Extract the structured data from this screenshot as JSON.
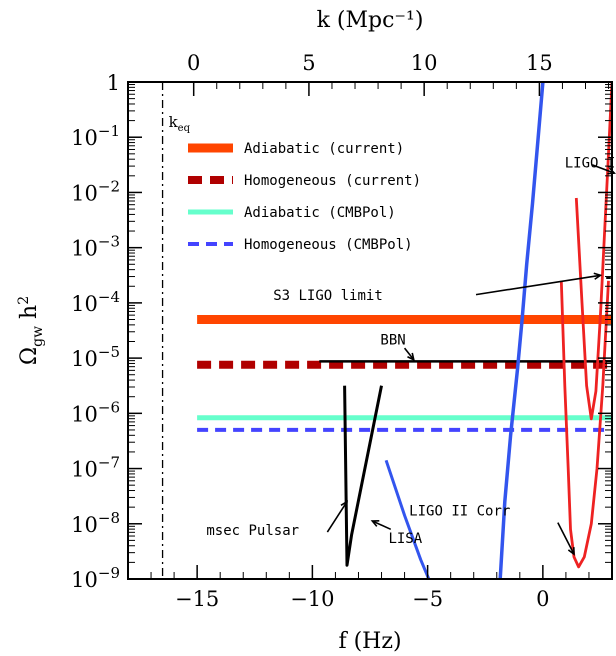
{
  "chart_data": {
    "type": "line",
    "xlabel": "f (Hz)",
    "x2label": "k (Mpc⁻¹)",
    "ylabel": "Ω_gw h²",
    "xlim": [
      -18,
      3
    ],
    "ylim": [
      -9,
      0
    ],
    "x_ticks": [
      -15,
      -10,
      -5,
      0
    ],
    "x_tick_labels": [
      "−15",
      "−10",
      "−5",
      "0"
    ],
    "x2_ticks": [
      0,
      5,
      10,
      15
    ],
    "x2_tick_labels": [
      "0",
      "5",
      "10",
      "15"
    ],
    "x2_offset": -15.15,
    "y_ticks": [
      0,
      -1,
      -2,
      -3,
      -4,
      -5,
      -6,
      -7,
      -8,
      -9
    ],
    "y_tick_labels": [
      {
        "base": "1",
        "exp": ""
      },
      {
        "base": "10",
        "exp": "−1"
      },
      {
        "base": "10",
        "exp": "−2"
      },
      {
        "base": "10",
        "exp": "−3"
      },
      {
        "base": "10",
        "exp": "−4"
      },
      {
        "base": "10",
        "exp": "−5"
      },
      {
        "base": "10",
        "exp": "−6"
      },
      {
        "base": "10",
        "exp": "−7"
      },
      {
        "base": "10",
        "exp": "−8"
      },
      {
        "base": "10",
        "exp": "−9"
      }
    ],
    "k_eq": {
      "x": -16.5,
      "label": "k",
      "label_sub": "eq"
    },
    "legend": [
      {
        "label": "Adiabatic (current)",
        "color": "#ff4500",
        "dash": "solid"
      },
      {
        "label": "Homogeneous (current)",
        "color": "#b00000",
        "dash": "dashed"
      },
      {
        "label": "Adiabatic (CMBPol)",
        "color": "#66ffcc",
        "dash": "solid"
      },
      {
        "label": "Homogeneous (CMBPol)",
        "color": "#4444ff",
        "dash": "dashed"
      }
    ],
    "series": [
      {
        "name": "Adiabatic (current)",
        "color": "#ff4500",
        "x": [
          -15,
          3
        ],
        "y": [
          -4.3,
          -4.3
        ]
      },
      {
        "name": "Homogeneous (current)",
        "color": "#b00000",
        "x": [
          -15,
          3
        ],
        "y": [
          -5.12,
          -5.12
        ]
      },
      {
        "name": "Adiabatic (CMBPol)",
        "color": "#66ffcc",
        "x": [
          -15,
          3
        ],
        "y": [
          -6.08,
          -6.08
        ]
      },
      {
        "name": "Homogeneous (CMBPol)",
        "color": "#4444ff",
        "x": [
          -15,
          3
        ],
        "y": [
          -6.3,
          -6.3
        ]
      },
      {
        "name": "BBN",
        "color": "#000000",
        "x": [
          -9.7,
          3
        ],
        "y": [
          -5.06,
          -5.06
        ]
      },
      {
        "name": "msec Pulsar",
        "color": "#000000",
        "x": [
          -8.6,
          -8.5,
          -8.5,
          -8.3,
          -7.0
        ],
        "y": [
          -5.5,
          -8.75,
          -8.75,
          -8.2,
          -5.5
        ]
      },
      {
        "name": "LISA",
        "color": "#3355ee",
        "x": [
          -6.8,
          -6.0,
          -5.3,
          -4.95
        ],
        "y": [
          -6.85,
          -7.85,
          -8.65,
          -9.0
        ]
      },
      {
        "name": "LIGO",
        "color": "#3355ee",
        "x": [
          -1.85,
          -1.65,
          -1.4,
          -1.1,
          -0.9,
          -0.7,
          -0.45,
          -0.2,
          0.0
        ],
        "y": [
          -9.0,
          -7.6,
          -6.4,
          -5.2,
          -4.3,
          -3.3,
          -2.2,
          -1.0,
          0.0
        ]
      },
      {
        "name": "LIGO I Corr",
        "color": "#ee2222",
        "x": [
          1.45,
          1.7,
          1.9,
          2.1,
          2.3,
          2.5,
          2.8,
          3.0
        ],
        "y": [
          -2.1,
          -4.0,
          -5.5,
          -6.1,
          -5.6,
          -4.2,
          -1.7,
          0.0
        ]
      },
      {
        "name": "LIGO II Corr",
        "color": "#ee2222",
        "x": [
          0.8,
          0.95,
          1.1,
          1.2,
          1.35,
          1.55,
          1.8,
          2.1,
          2.35,
          2.6,
          2.85
        ],
        "y": [
          -3.6,
          -5.5,
          -7.0,
          -8.1,
          -8.6,
          -8.78,
          -8.6,
          -8.0,
          -7.0,
          -5.5,
          -3.6
        ]
      },
      {
        "name": "S3 LIGO limit",
        "color": "#000000",
        "x": [
          2.75,
          2.95
        ],
        "y": [
          -3.55,
          -3.55
        ]
      }
    ],
    "annotations": [
      {
        "text": "BBN",
        "x": -6.5,
        "y": -4.75,
        "arrow_to": [
          -5.6,
          -5.03
        ]
      },
      {
        "text": "S3 LIGO limit",
        "x": -11.7,
        "y": -3.95,
        "arrow_from": [
          -2.9,
          -3.85
        ],
        "arrow_to": [
          2.5,
          -3.5
        ]
      },
      {
        "text": "LIGO I Corr",
        "x": 0.95,
        "y": -1.55,
        "arrow_to": [
          3.1,
          -1.65
        ]
      },
      {
        "text": "LIGO II Corr",
        "x": -5.8,
        "y": -7.85,
        "arrow_to": [
          1.35,
          -8.55
        ]
      },
      {
        "text": "msec Pulsar",
        "x": -14.6,
        "y": -8.2,
        "arrow_to": [
          -8.5,
          -7.6
        ]
      },
      {
        "text": "LISA",
        "x": -6.7,
        "y": -8.35,
        "arrow_to": [
          -7.4,
          -7.95
        ]
      }
    ]
  }
}
